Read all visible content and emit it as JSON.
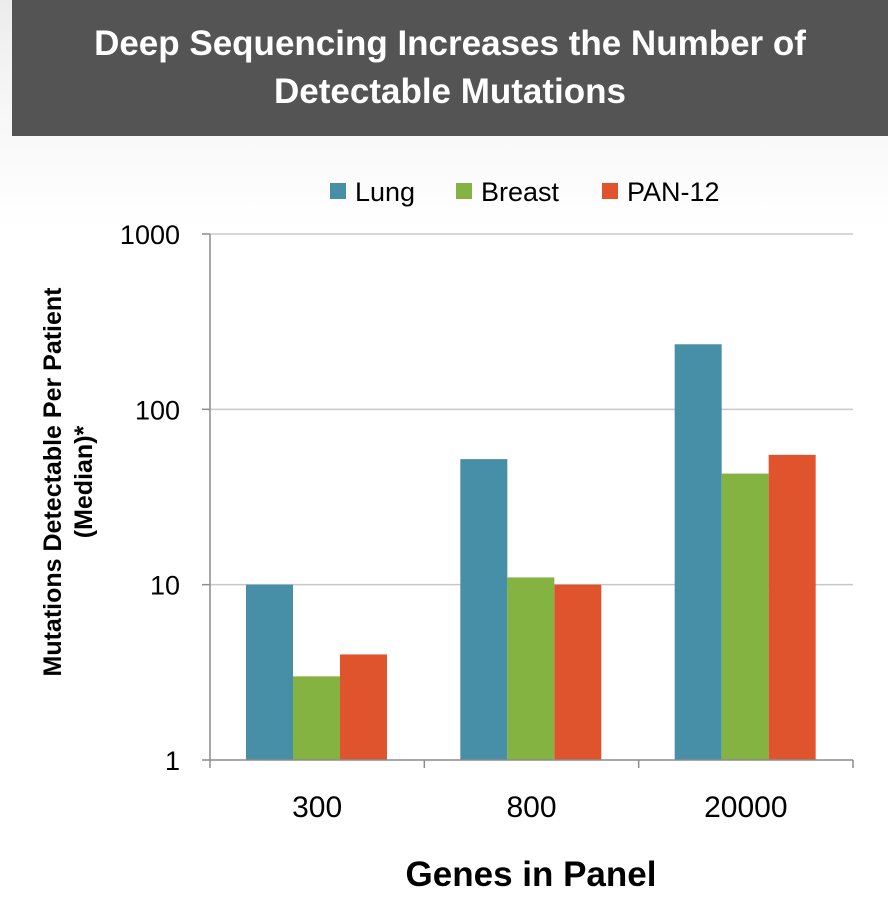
{
  "header": {
    "title": "Deep Sequencing Increases the Number of Detectable Mutations"
  },
  "colors": {
    "Lung": "#468fa6",
    "Breast": "#85b342",
    "PAN-12": "#e0542d",
    "grid": "#c8c8c8",
    "axis": "#8c8c8c",
    "header_bg": "#545454"
  },
  "chart_data": {
    "type": "bar",
    "title": "Deep Sequencing Increases the Number of Detectable Mutations",
    "categories": [
      "300",
      "800",
      "20000"
    ],
    "series": [
      {
        "name": "Lung",
        "values": [
          10,
          52,
          235
        ]
      },
      {
        "name": "Breast",
        "values": [
          3,
          11,
          43
        ]
      },
      {
        "name": "PAN-12",
        "values": [
          4,
          10,
          55
        ]
      }
    ],
    "xlabel": "Genes in Panel",
    "ylabel": [
      "Mutations Detectable Per Patient",
      "(Median)*"
    ],
    "yscale": "log",
    "ylim": [
      1,
      1000
    ],
    "yticks": [
      "1",
      "10",
      "100",
      "1000"
    ],
    "grid": true,
    "legend_position": "top"
  }
}
